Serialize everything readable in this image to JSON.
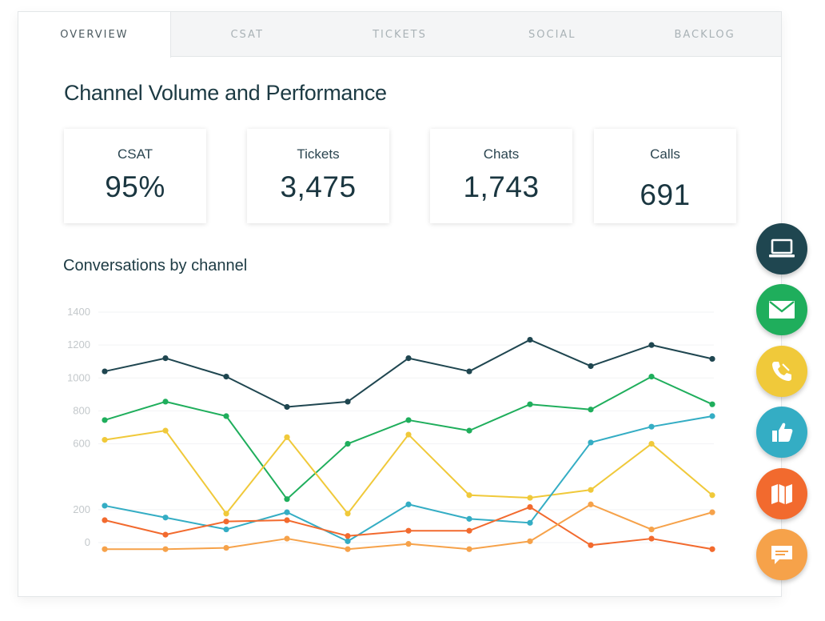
{
  "tabs": [
    {
      "label": "OVERVIEW",
      "active": true
    },
    {
      "label": "CSAT",
      "active": false
    },
    {
      "label": "TICKETS",
      "active": false
    },
    {
      "label": "SOCIAL",
      "active": false
    },
    {
      "label": "BACKLOG",
      "active": false
    }
  ],
  "page_title": "Channel Volume and Performance",
  "metrics": [
    {
      "label": "CSAT",
      "value": "95%"
    },
    {
      "label": "Tickets",
      "value": "3,475"
    },
    {
      "label": "Chats",
      "value": "1,743"
    },
    {
      "label": "Calls",
      "value": "691"
    }
  ],
  "chart_title": "Conversations by channel",
  "chart_data": {
    "type": "line",
    "title": "Conversations by channel",
    "xlabel": "",
    "ylabel": "",
    "ylim": [
      0,
      1400
    ],
    "yticks": [
      0,
      200,
      600,
      800,
      1000,
      1200,
      1400
    ],
    "grid": true,
    "x": [
      1,
      2,
      3,
      4,
      5,
      6,
      7,
      8,
      9,
      10,
      11
    ],
    "series": [
      {
        "color": "#1f4650",
        "values": [
          1040,
          1120,
          1008,
          824,
          856,
          1120,
          1040,
          1232,
          1072,
          1200,
          1116
        ]
      },
      {
        "color": "#1fae5c",
        "values": [
          744,
          856,
          768,
          264,
          600,
          744,
          680,
          840,
          808,
          1008,
          840
        ]
      },
      {
        "color": "#f0c93a",
        "values": [
          624,
          680,
          176,
          640,
          176,
          656,
          288,
          272,
          320,
          600,
          288
        ]
      },
      {
        "color": "#34adc4",
        "values": [
          224,
          152,
          80,
          184,
          8,
          232,
          144,
          120,
          608,
          704,
          768
        ]
      },
      {
        "color": "#f26a2e",
        "values": [
          136,
          48,
          128,
          136,
          40,
          72,
          72,
          216,
          -16,
          24,
          -40
        ]
      },
      {
        "color": "#f6a24a",
        "values": [
          -40,
          -40,
          -32,
          24,
          -40,
          -8,
          -40,
          8,
          232,
          80,
          184
        ]
      }
    ]
  },
  "channels": [
    {
      "name": "web",
      "icon": "laptop-icon",
      "color": "#1f4650"
    },
    {
      "name": "email",
      "icon": "envelope-icon",
      "color": "#1fae5c"
    },
    {
      "name": "phone",
      "icon": "phone-icon",
      "color": "#f0c93a"
    },
    {
      "name": "social",
      "icon": "thumbs-up-icon",
      "color": "#34adc4"
    },
    {
      "name": "map",
      "icon": "map-icon",
      "color": "#f26a2e"
    },
    {
      "name": "chat",
      "icon": "chat-bubble-icon",
      "color": "#f6a24a"
    }
  ]
}
